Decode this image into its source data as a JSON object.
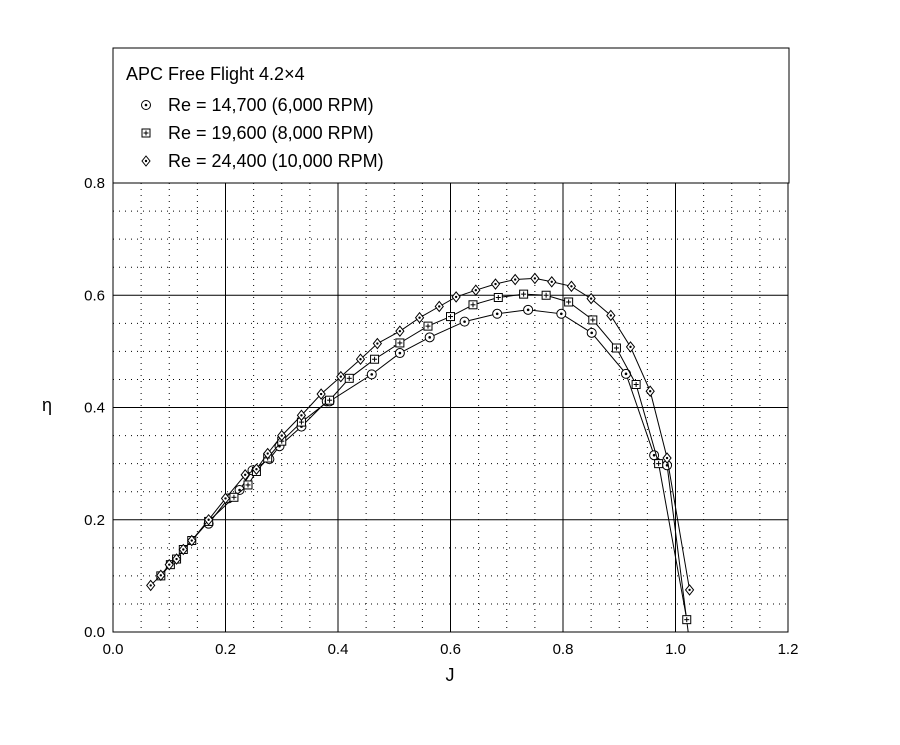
{
  "chart_data": {
    "type": "line",
    "title": "APC Free Flight 4.2×4",
    "xlabel": "J",
    "ylabel": "η",
    "xlim": [
      0.0,
      1.2
    ],
    "ylim": [
      0.0,
      0.8
    ],
    "x_major_ticks": [
      "0.0",
      "0.2",
      "0.4",
      "0.6",
      "0.8",
      "1.0",
      "1.2"
    ],
    "y_major_ticks": [
      "0.0",
      "0.2",
      "0.4",
      "0.6",
      "0.8"
    ],
    "grid": "major solid, minor dotted",
    "legend_position": "top",
    "series": [
      {
        "name": "Re = 14,700 (6,000 RPM)",
        "marker": "circle-dot",
        "x": [
          0.17,
          0.205,
          0.225,
          0.248,
          0.278,
          0.296,
          0.335,
          0.38,
          0.385,
          0.46,
          0.51,
          0.563,
          0.625,
          0.683,
          0.738,
          0.797,
          0.851,
          0.912,
          0.962,
          0.985,
          1.025
        ],
        "y": [
          0.193,
          0.238,
          0.253,
          0.288,
          0.308,
          0.331,
          0.366,
          0.411,
          0.411,
          0.459,
          0.497,
          0.525,
          0.553,
          0.567,
          0.574,
          0.567,
          0.533,
          0.46,
          0.315,
          0.297,
          -0.02
        ]
      },
      {
        "name": "Re = 19,600 (8,000 RPM)",
        "marker": "square-plus",
        "x": [
          0.085,
          0.102,
          0.113,
          0.125,
          0.14,
          0.17,
          0.215,
          0.24,
          0.255,
          0.275,
          0.3,
          0.335,
          0.385,
          0.42,
          0.465,
          0.51,
          0.56,
          0.6,
          0.64,
          0.685,
          0.73,
          0.77,
          0.81,
          0.853,
          0.895,
          0.93,
          0.97,
          1.02
        ],
        "y": [
          0.1,
          0.12,
          0.13,
          0.147,
          0.163,
          0.197,
          0.24,
          0.262,
          0.286,
          0.31,
          0.34,
          0.374,
          0.413,
          0.452,
          0.486,
          0.515,
          0.545,
          0.562,
          0.583,
          0.596,
          0.602,
          0.6,
          0.588,
          0.556,
          0.506,
          0.441,
          0.3,
          0.022
        ]
      },
      {
        "name": "Re = 24,400 (10,000 RPM)",
        "marker": "diamond-dot",
        "x": [
          0.067,
          0.085,
          0.1,
          0.113,
          0.125,
          0.14,
          0.17,
          0.2,
          0.235,
          0.255,
          0.275,
          0.3,
          0.335,
          0.37,
          0.405,
          0.44,
          0.47,
          0.51,
          0.545,
          0.58,
          0.61,
          0.645,
          0.68,
          0.715,
          0.75,
          0.78,
          0.815,
          0.85,
          0.885,
          0.92,
          0.955,
          0.985,
          1.025
        ],
        "y": [
          0.083,
          0.101,
          0.12,
          0.13,
          0.147,
          0.163,
          0.2,
          0.238,
          0.28,
          0.29,
          0.318,
          0.35,
          0.386,
          0.424,
          0.455,
          0.486,
          0.514,
          0.536,
          0.56,
          0.58,
          0.597,
          0.609,
          0.62,
          0.628,
          0.63,
          0.624,
          0.616,
          0.594,
          0.564,
          0.508,
          0.429,
          0.31,
          0.075
        ]
      }
    ]
  }
}
